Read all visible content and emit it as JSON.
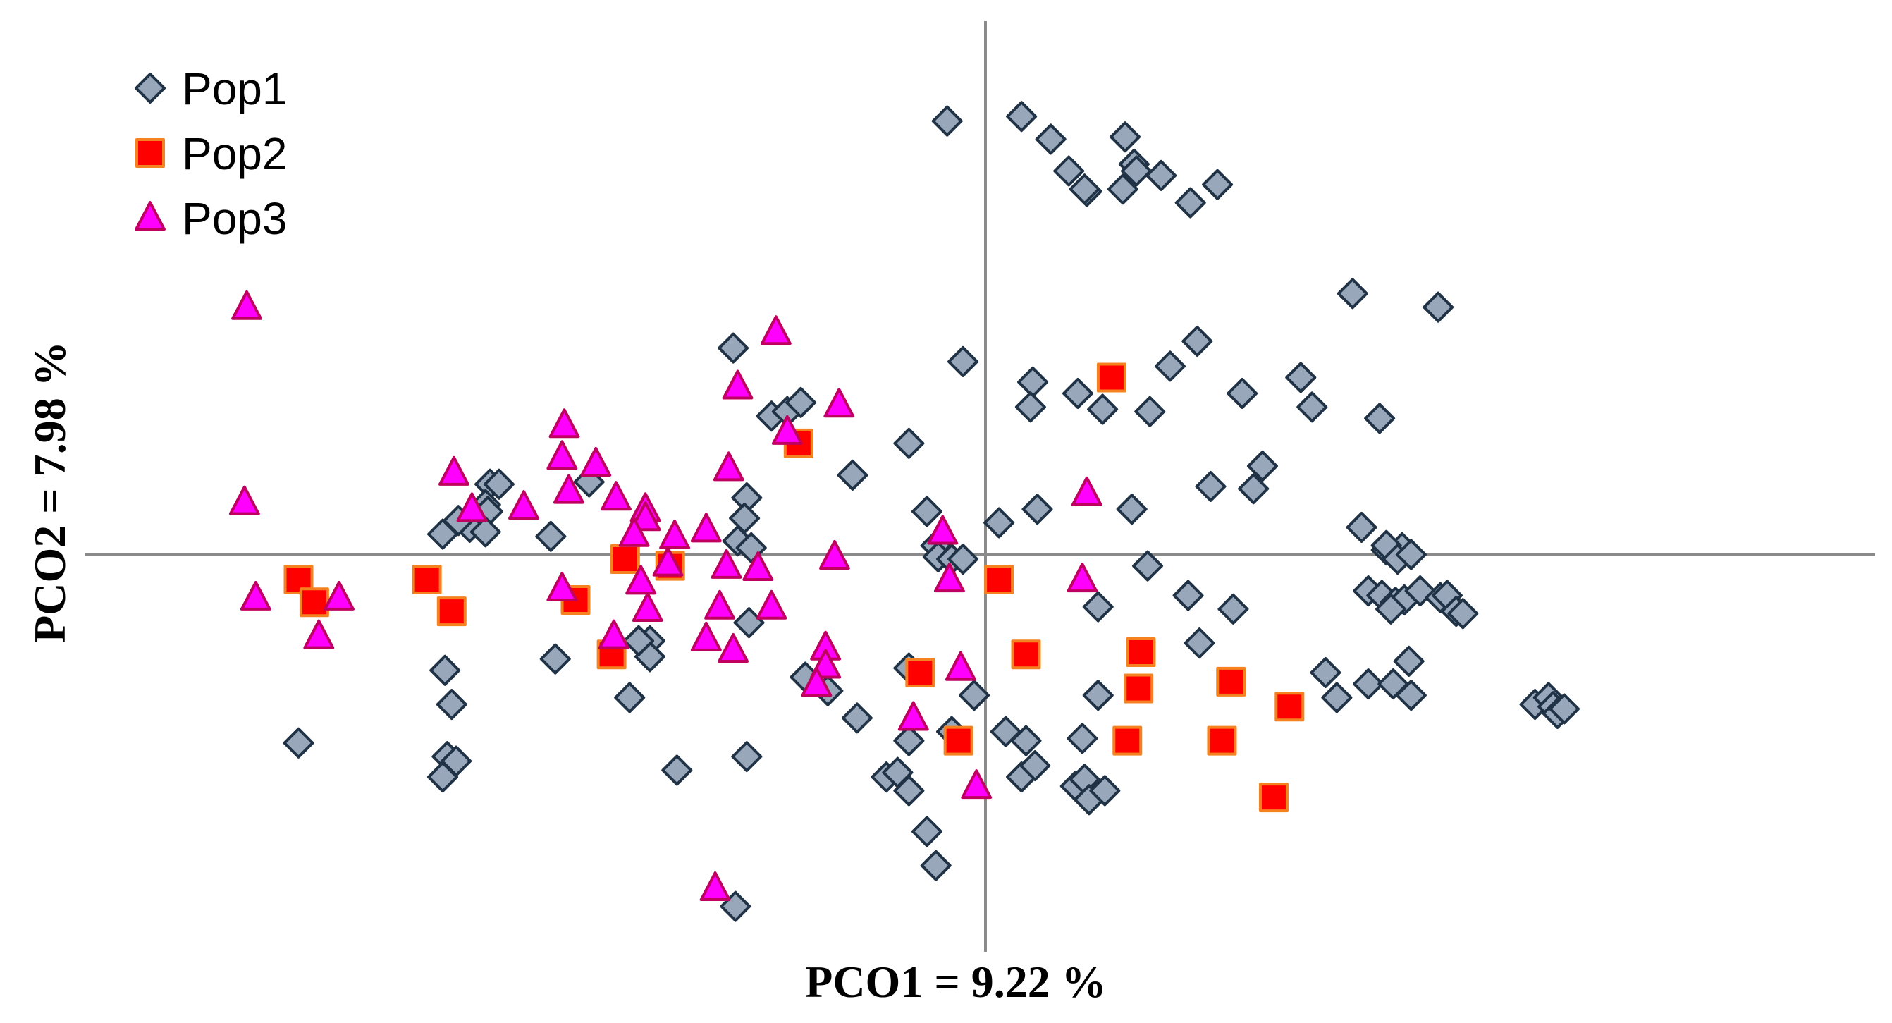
{
  "chart_data": {
    "type": "scatter",
    "xlabel": "PCO1 = 9.22 %",
    "ylabel": "PCO2 = 7.98 %",
    "legend_position": "top-left",
    "grid": false,
    "axes_cross_at_origin": true,
    "tick_labels": false,
    "xlim": [
      -4.0,
      3.95
    ],
    "ylim": [
      -1.75,
      2.35
    ],
    "series": [
      {
        "name": "Pop1",
        "marker": "diamond",
        "color": "#98A7B9",
        "edge_color": "#203245",
        "points": [
          [
            -0.17,
            1.91
          ],
          [
            0.16,
            1.93
          ],
          [
            0.29,
            1.83
          ],
          [
            0.37,
            1.69
          ],
          [
            0.45,
            1.6
          ],
          [
            0.44,
            1.61
          ],
          [
            0.61,
            1.61
          ],
          [
            0.62,
            1.84
          ],
          [
            0.66,
            1.72
          ],
          [
            0.67,
            1.69
          ],
          [
            0.78,
            1.67
          ],
          [
            0.91,
            1.55
          ],
          [
            1.03,
            1.63
          ],
          [
            1.63,
            1.15
          ],
          [
            2.01,
            1.09
          ],
          [
            -1.12,
            0.91
          ],
          [
            -0.95,
            0.61
          ],
          [
            -0.88,
            0.63
          ],
          [
            -0.82,
            0.67
          ],
          [
            -0.34,
            0.49
          ],
          [
            -0.59,
            0.35
          ],
          [
            -1.06,
            0.25
          ],
          [
            -0.26,
            0.19
          ],
          [
            -0.22,
            0.04
          ],
          [
            0.06,
            0.14
          ],
          [
            0.23,
            0.2
          ],
          [
            -0.1,
            0.85
          ],
          [
            0.21,
            0.76
          ],
          [
            0.2,
            0.65
          ],
          [
            0.41,
            0.71
          ],
          [
            0.52,
            0.64
          ],
          [
            0.73,
            0.63
          ],
          [
            0.82,
            0.83
          ],
          [
            0.94,
            0.94
          ],
          [
            1.14,
            0.71
          ],
          [
            1.23,
            0.39
          ],
          [
            1.19,
            0.29
          ],
          [
            1.0,
            0.3
          ],
          [
            0.65,
            0.2
          ],
          [
            1.4,
            0.78
          ],
          [
            1.45,
            0.65
          ],
          [
            1.75,
            0.6
          ],
          [
            -1.76,
            0.32
          ],
          [
            -2.2,
            0.31
          ],
          [
            -2.16,
            0.31
          ],
          [
            -2.22,
            0.22
          ],
          [
            -2.21,
            0.19
          ],
          [
            -2.29,
            0.12
          ],
          [
            -2.34,
            0.15
          ],
          [
            -2.41,
            0.09
          ],
          [
            -2.22,
            0.1
          ],
          [
            -1.93,
            0.08
          ],
          [
            -1.07,
            0.16
          ],
          [
            -1.1,
            0.06
          ],
          [
            -1.04,
            0.03
          ],
          [
            -0.21,
            -0.01
          ],
          [
            -0.15,
            -0.02
          ],
          [
            -0.1,
            -0.02
          ],
          [
            0.72,
            -0.05
          ],
          [
            0.5,
            -0.23
          ],
          [
            0.9,
            -0.18
          ],
          [
            1.1,
            -0.24
          ],
          [
            0.95,
            -0.39
          ],
          [
            1.67,
            0.12
          ],
          [
            1.78,
            0.02
          ],
          [
            1.85,
            0.03
          ],
          [
            1.78,
            0.04
          ],
          [
            1.83,
            -0.02
          ],
          [
            1.89,
            0.0
          ],
          [
            1.7,
            -0.16
          ],
          [
            1.76,
            -0.18
          ],
          [
            1.82,
            -0.21
          ],
          [
            1.86,
            -0.2
          ],
          [
            1.93,
            -0.16
          ],
          [
            2.02,
            -0.19
          ],
          [
            2.05,
            -0.18
          ],
          [
            2.09,
            -0.25
          ],
          [
            2.12,
            -0.26
          ],
          [
            1.8,
            -0.24
          ],
          [
            1.51,
            -0.52
          ],
          [
            1.56,
            -0.63
          ],
          [
            1.7,
            -0.57
          ],
          [
            1.81,
            -0.57
          ],
          [
            1.89,
            -0.62
          ],
          [
            1.88,
            -0.47
          ],
          [
            2.44,
            -0.66
          ],
          [
            2.5,
            -0.63
          ],
          [
            2.52,
            -0.67
          ],
          [
            2.54,
            -0.7
          ],
          [
            2.57,
            -0.68
          ],
          [
            -1.05,
            -0.3
          ],
          [
            -0.7,
            -0.6
          ],
          [
            -0.8,
            -0.54
          ],
          [
            -0.57,
            -0.72
          ],
          [
            -0.34,
            -0.82
          ],
          [
            -0.34,
            -0.5
          ],
          [
            -0.15,
            -0.78
          ],
          [
            -0.05,
            -0.62
          ],
          [
            0.09,
            -0.78
          ],
          [
            0.18,
            -0.82
          ],
          [
            0.43,
            -0.81
          ],
          [
            0.5,
            -0.62
          ],
          [
            -0.44,
            -0.98
          ],
          [
            -0.39,
            -0.96
          ],
          [
            -0.34,
            -1.04
          ],
          [
            0.16,
            -0.98
          ],
          [
            0.22,
            -0.93
          ],
          [
            0.4,
            -1.02
          ],
          [
            0.44,
            -0.99
          ],
          [
            0.46,
            -1.08
          ],
          [
            0.53,
            -1.04
          ],
          [
            -0.22,
            -1.37
          ],
          [
            -1.11,
            -1.55
          ],
          [
            -0.26,
            -1.22
          ],
          [
            -2.4,
            -0.51
          ],
          [
            -2.37,
            -0.66
          ],
          [
            -1.91,
            -0.46
          ],
          [
            -1.49,
            -0.38
          ],
          [
            -1.54,
            -0.38
          ],
          [
            -1.49,
            -0.45
          ],
          [
            -1.54,
            -0.38
          ],
          [
            -1.58,
            -0.63
          ],
          [
            -1.06,
            -0.89
          ],
          [
            -1.37,
            -0.95
          ],
          [
            -2.39,
            -0.89
          ],
          [
            -3.05,
            -0.83
          ],
          [
            -2.35,
            -0.91
          ],
          [
            -2.41,
            -0.98
          ]
        ]
      },
      {
        "name": "Pop2",
        "marker": "square",
        "color": "#FF0000",
        "edge_color": "#F58220",
        "points": [
          [
            0.56,
            0.78
          ],
          [
            -0.83,
            0.49
          ],
          [
            -1.4,
            -0.05
          ],
          [
            -1.6,
            -0.02
          ],
          [
            0.06,
            -0.11
          ],
          [
            0.18,
            -0.44
          ],
          [
            0.69,
            -0.43
          ],
          [
            -1.82,
            -0.2
          ],
          [
            -1.66,
            -0.44
          ],
          [
            -2.37,
            -0.25
          ],
          [
            -2.48,
            -0.11
          ],
          [
            -3.05,
            -0.11
          ],
          [
            -2.98,
            -0.21
          ],
          [
            -0.29,
            -0.52
          ],
          [
            0.68,
            -0.59
          ],
          [
            1.09,
            -0.56
          ],
          [
            1.35,
            -0.67
          ],
          [
            -0.12,
            -0.82
          ],
          [
            0.63,
            -0.82
          ],
          [
            1.05,
            -0.82
          ],
          [
            1.28,
            -1.07
          ]
        ]
      },
      {
        "name": "Pop3",
        "marker": "triangle",
        "color": "#FF00FF",
        "edge_color": "#C00060",
        "points": [
          [
            -3.28,
            1.09
          ],
          [
            -0.93,
            0.98
          ],
          [
            -1.1,
            0.74
          ],
          [
            -0.65,
            0.66
          ],
          [
            -1.87,
            0.57
          ],
          [
            -0.88,
            0.54
          ],
          [
            -1.88,
            0.43
          ],
          [
            -1.73,
            0.4
          ],
          [
            -1.14,
            0.38
          ],
          [
            -1.85,
            0.28
          ],
          [
            -1.64,
            0.25
          ],
          [
            -2.36,
            0.36
          ],
          [
            -2.05,
            0.21
          ],
          [
            -3.29,
            0.23
          ],
          [
            -2.28,
            0.2
          ],
          [
            -1.51,
            0.2
          ],
          [
            -1.51,
            0.16
          ],
          [
            -1.56,
            0.09
          ],
          [
            -1.38,
            0.08
          ],
          [
            -1.24,
            0.11
          ],
          [
            0.45,
            0.27
          ],
          [
            -0.19,
            0.1
          ],
          [
            -0.67,
            -0.01
          ],
          [
            0.43,
            -0.11
          ],
          [
            -0.16,
            -0.11
          ],
          [
            -1.15,
            -0.05
          ],
          [
            -1.01,
            -0.06
          ],
          [
            -1.53,
            -0.12
          ],
          [
            -1.41,
            -0.04
          ],
          [
            -3.24,
            -0.19
          ],
          [
            -2.87,
            -0.19
          ],
          [
            -1.88,
            -0.15
          ],
          [
            -1.5,
            -0.24
          ],
          [
            -0.95,
            -0.23
          ],
          [
            -1.18,
            -0.23
          ],
          [
            -1.24,
            -0.37
          ],
          [
            -0.71,
            -0.41
          ],
          [
            -1.12,
            -0.42
          ],
          [
            -2.96,
            -0.36
          ],
          [
            -1.65,
            -0.36
          ],
          [
            -0.71,
            -0.49
          ],
          [
            -0.75,
            -0.57
          ],
          [
            -0.11,
            -0.5
          ],
          [
            -0.32,
            -0.72
          ],
          [
            -0.04,
            -1.02
          ],
          [
            -1.2,
            -1.47
          ]
        ]
      }
    ]
  }
}
